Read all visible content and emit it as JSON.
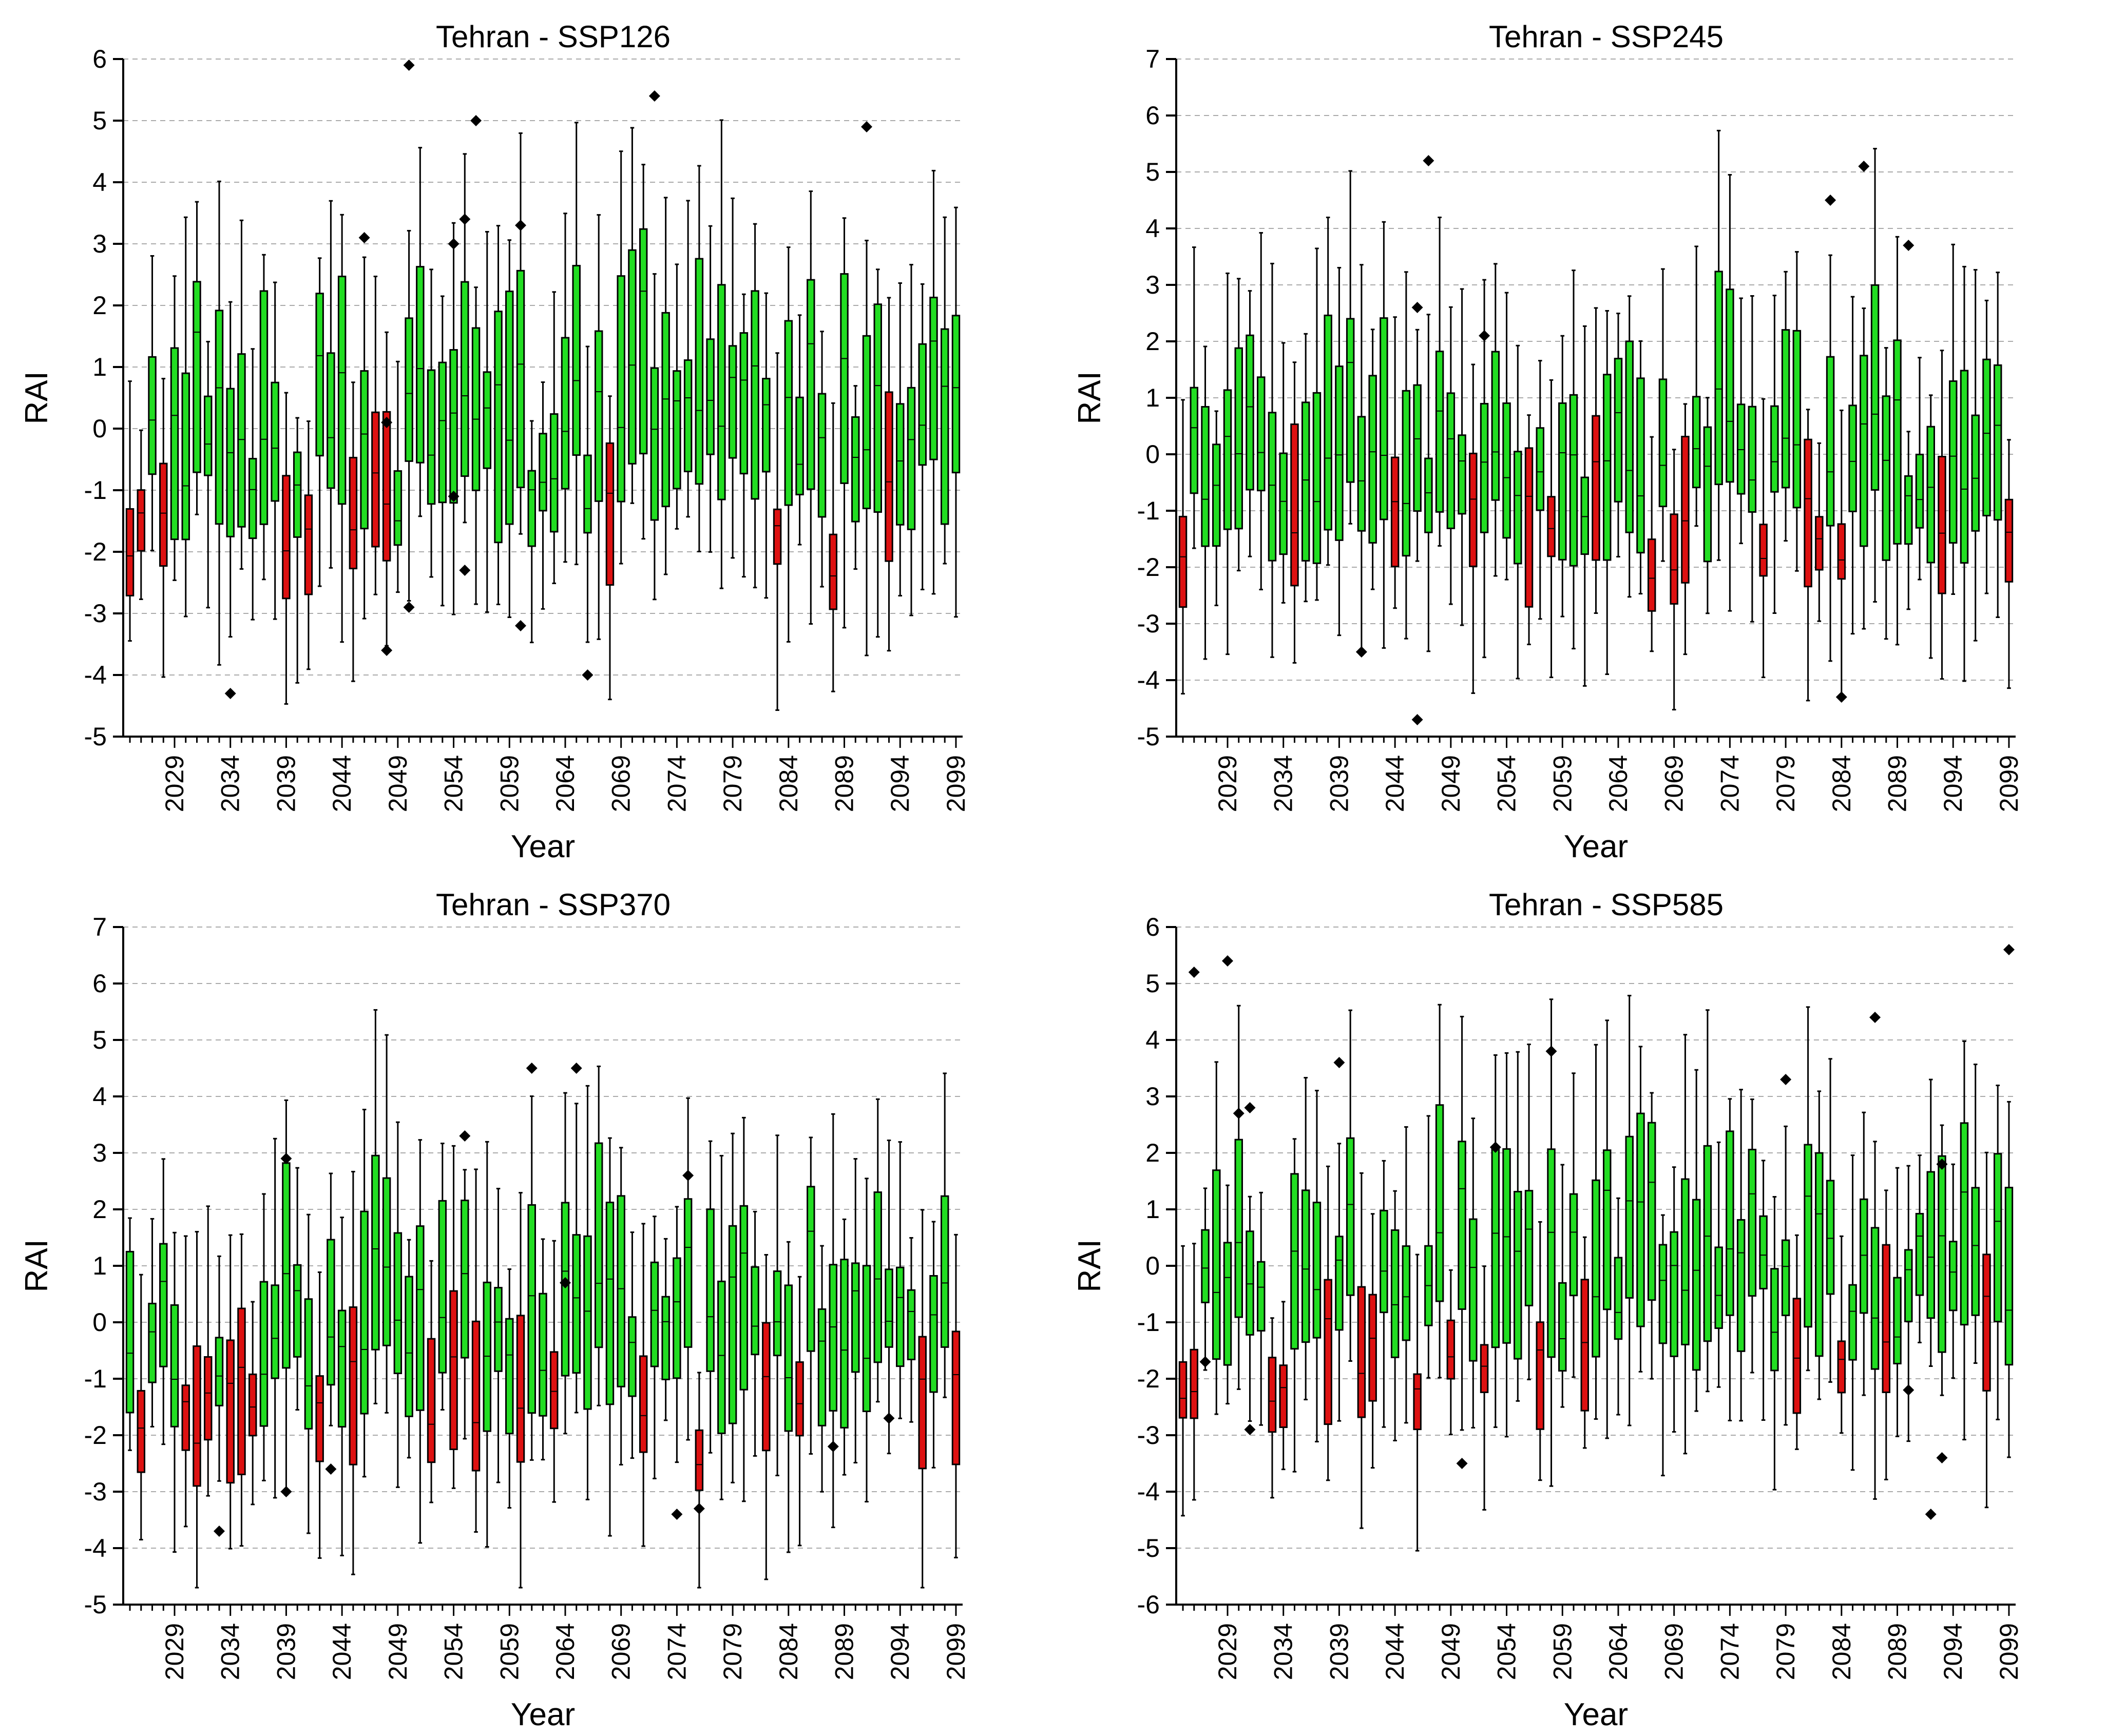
{
  "colors": {
    "wet": "#22dd22",
    "dry": "#dd1111",
    "line": "#000000",
    "grid": "#aaaaaa"
  },
  "chart_data": [
    {
      "type": "box",
      "title": "Tehran - SSP126",
      "xlabel": "Year",
      "ylabel": "RAI",
      "ylim": [
        -5,
        6
      ],
      "yticks": [
        "-5",
        "-4",
        "-3",
        "-2",
        "-1",
        "0",
        "1",
        "2",
        "3",
        "4",
        "5",
        "6"
      ],
      "x_range": [
        2025,
        2099
      ],
      "xticks": [
        "2029",
        "2034",
        "2039",
        "2044",
        "2049",
        "2054",
        "2059",
        "2064",
        "2069",
        "2074",
        "2079",
        "2084",
        "2089",
        "2094",
        "2099"
      ],
      "seed": 11,
      "dry_years": [
        2025,
        2026,
        2028,
        2039,
        2041,
        2045,
        2047,
        2048,
        2068,
        2083,
        2088,
        2093
      ],
      "outliers": [
        [
          2034,
          -4.3
        ],
        [
          2046,
          3.1
        ],
        [
          2048,
          0.1
        ],
        [
          2048,
          -3.6
        ],
        [
          2050,
          5.9
        ],
        [
          2050,
          -2.9
        ],
        [
          2054,
          3.0
        ],
        [
          2054,
          -1.1
        ],
        [
          2055,
          3.4
        ],
        [
          2055,
          -2.3
        ],
        [
          2056,
          5.0
        ],
        [
          2060,
          3.3
        ],
        [
          2060,
          -3.2
        ],
        [
          2066,
          -4.0
        ],
        [
          2072,
          5.4
        ],
        [
          2091,
          4.9
        ]
      ]
    },
    {
      "type": "box",
      "title": "Tehran - SSP245",
      "xlabel": "Year",
      "ylabel": "RAI",
      "ylim": [
        -5,
        7
      ],
      "yticks": [
        "-5",
        "-4",
        "-3",
        "-2",
        "-1",
        "0",
        "1",
        "2",
        "3",
        "4",
        "5",
        "6",
        "7"
      ],
      "x_range": [
        2025,
        2099
      ],
      "xticks": [
        "2029",
        "2034",
        "2039",
        "2044",
        "2049",
        "2054",
        "2059",
        "2064",
        "2069",
        "2074",
        "2079",
        "2084",
        "2089",
        "2094",
        "2099"
      ],
      "seed": 23,
      "dry_years": [
        2025,
        2035,
        2044,
        2051,
        2056,
        2058,
        2062,
        2067,
        2069,
        2070,
        2077,
        2081,
        2082,
        2084,
        2093,
        2099
      ],
      "outliers": [
        [
          2041,
          -3.5
        ],
        [
          2046,
          2.6
        ],
        [
          2046,
          -4.7
        ],
        [
          2047,
          5.2
        ],
        [
          2052,
          2.1
        ],
        [
          2083,
          4.5
        ],
        [
          2084,
          -4.3
        ],
        [
          2086,
          5.1
        ],
        [
          2090,
          3.7
        ]
      ]
    },
    {
      "type": "box",
      "title": "Tehran - SSP370",
      "xlabel": "Year",
      "ylabel": "RAI",
      "ylim": [
        -5,
        7
      ],
      "yticks": [
        "-5",
        "-4",
        "-3",
        "-2",
        "-1",
        "0",
        "1",
        "2",
        "3",
        "4",
        "5",
        "6",
        "7"
      ],
      "x_range": [
        2025,
        2099
      ],
      "xticks": [
        "2029",
        "2034",
        "2039",
        "2044",
        "2049",
        "2054",
        "2059",
        "2064",
        "2069",
        "2074",
        "2079",
        "2084",
        "2089",
        "2094",
        "2099"
      ],
      "seed": 37,
      "dry_years": [
        2026,
        2030,
        2031,
        2032,
        2034,
        2035,
        2036,
        2042,
        2045,
        2052,
        2054,
        2056,
        2060,
        2063,
        2071,
        2076,
        2082,
        2085,
        2096,
        2099
      ],
      "outliers": [
        [
          2033,
          -3.7
        ],
        [
          2039,
          2.9
        ],
        [
          2039,
          -3.0
        ],
        [
          2043,
          -2.6
        ],
        [
          2055,
          3.3
        ],
        [
          2061,
          4.5
        ],
        [
          2064,
          0.7
        ],
        [
          2065,
          4.5
        ],
        [
          2074,
          -3.4
        ],
        [
          2075,
          2.6
        ],
        [
          2076,
          -3.3
        ],
        [
          2088,
          -2.2
        ],
        [
          2093,
          -1.7
        ]
      ]
    },
    {
      "type": "box",
      "title": "Tehran - SSP585",
      "xlabel": "Year",
      "ylabel": "RAI",
      "ylim": [
        -6,
        6
      ],
      "yticks": [
        "-6",
        "-5",
        "-4",
        "-3",
        "-2",
        "-1",
        "0",
        "1",
        "2",
        "3",
        "4",
        "5",
        "6"
      ],
      "x_range": [
        2025,
        2099
      ],
      "xticks": [
        "2029",
        "2034",
        "2039",
        "2044",
        "2049",
        "2054",
        "2059",
        "2064",
        "2069",
        "2074",
        "2079",
        "2084",
        "2089",
        "2094",
        "2099"
      ],
      "seed": 53,
      "dry_years": [
        2025,
        2026,
        2033,
        2034,
        2038,
        2041,
        2042,
        2046,
        2049,
        2052,
        2057,
        2061,
        2080,
        2084,
        2088,
        2097
      ],
      "outliers": [
        [
          2026,
          5.2
        ],
        [
          2027,
          -1.7
        ],
        [
          2029,
          5.4
        ],
        [
          2030,
          2.7
        ],
        [
          2031,
          2.8
        ],
        [
          2031,
          -2.9
        ],
        [
          2039,
          3.6
        ],
        [
          2050,
          -3.5
        ],
        [
          2053,
          2.1
        ],
        [
          2058,
          3.8
        ],
        [
          2079,
          3.3
        ],
        [
          2087,
          4.4
        ],
        [
          2090,
          -2.2
        ],
        [
          2092,
          -4.4
        ],
        [
          2093,
          1.8
        ],
        [
          2093,
          -3.4
        ],
        [
          2099,
          5.6
        ]
      ]
    }
  ]
}
